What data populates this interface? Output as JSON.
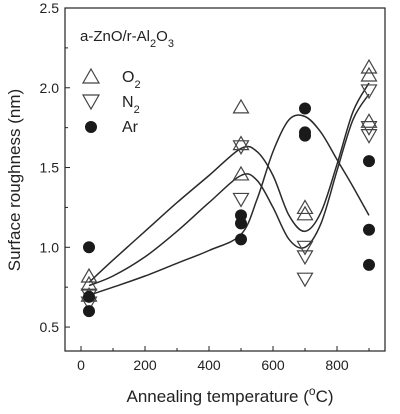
{
  "chart_data": {
    "type": "scatter",
    "xlabel": "Annealing temperature (°C)",
    "ylabel": "Surface roughness (nm)",
    "xlim": [
      -50,
      950
    ],
    "ylim": [
      0.35,
      2.5
    ],
    "xticks": [
      "0",
      "200",
      "400",
      "600",
      "800"
    ],
    "xtick_values": [
      0,
      200,
      400,
      600,
      800
    ],
    "yticks": [
      "0.5",
      "1.0",
      "1.5",
      "2.0",
      "2.5"
    ],
    "ytick_values": [
      0.5,
      1.0,
      1.5,
      2.0,
      2.5
    ],
    "annotation": "a-ZnO/r-Al2O3",
    "legend_position": "top-left",
    "grid": false,
    "series": [
      {
        "name": "O2",
        "marker": "triangle-up",
        "x": [
          25,
          25,
          25,
          500,
          500,
          500,
          700,
          700,
          900,
          900,
          900
        ],
        "y": [
          0.82,
          0.77,
          0.7,
          1.88,
          1.65,
          1.46,
          1.25,
          1.21,
          2.13,
          2.08,
          1.79
        ],
        "fit_x": [
          25,
          100,
          200,
          300,
          400,
          500,
          550,
          600,
          650,
          700,
          750,
          800,
          850,
          900
        ],
        "fit_y": [
          0.78,
          0.92,
          1.1,
          1.28,
          1.45,
          1.62,
          1.6,
          1.45,
          1.2,
          1.1,
          1.22,
          1.52,
          1.85,
          2.03
        ]
      },
      {
        "name": "N2",
        "marker": "triangle-down",
        "x": [
          25,
          25,
          500,
          500,
          700,
          700,
          700,
          900,
          900,
          900
        ],
        "y": [
          0.7,
          0.65,
          1.63,
          1.3,
          1.0,
          0.94,
          0.8,
          1.98,
          1.7,
          1.75
        ],
        "fit_x": [
          25,
          100,
          200,
          300,
          400,
          500,
          550,
          600,
          650,
          700,
          750,
          800,
          850,
          900
        ],
        "fit_y": [
          0.76,
          0.82,
          0.94,
          1.1,
          1.28,
          1.45,
          1.42,
          1.25,
          1.05,
          1.0,
          1.15,
          1.48,
          1.8,
          1.96
        ]
      },
      {
        "name": "Ar",
        "marker": "circle-filled",
        "x": [
          25,
          25,
          25,
          500,
          500,
          500,
          700,
          700,
          700,
          900,
          900,
          900
        ],
        "y": [
          1.0,
          0.69,
          0.6,
          1.2,
          1.15,
          1.05,
          1.87,
          1.72,
          1.7,
          1.54,
          1.11,
          0.89
        ],
        "fit_x": [
          25,
          100,
          200,
          300,
          400,
          500,
          550,
          600,
          650,
          700,
          750,
          800,
          850,
          900
        ],
        "fit_y": [
          0.7,
          0.75,
          0.82,
          0.9,
          0.98,
          1.08,
          1.3,
          1.6,
          1.8,
          1.82,
          1.72,
          1.55,
          1.38,
          1.2
        ]
      }
    ]
  }
}
